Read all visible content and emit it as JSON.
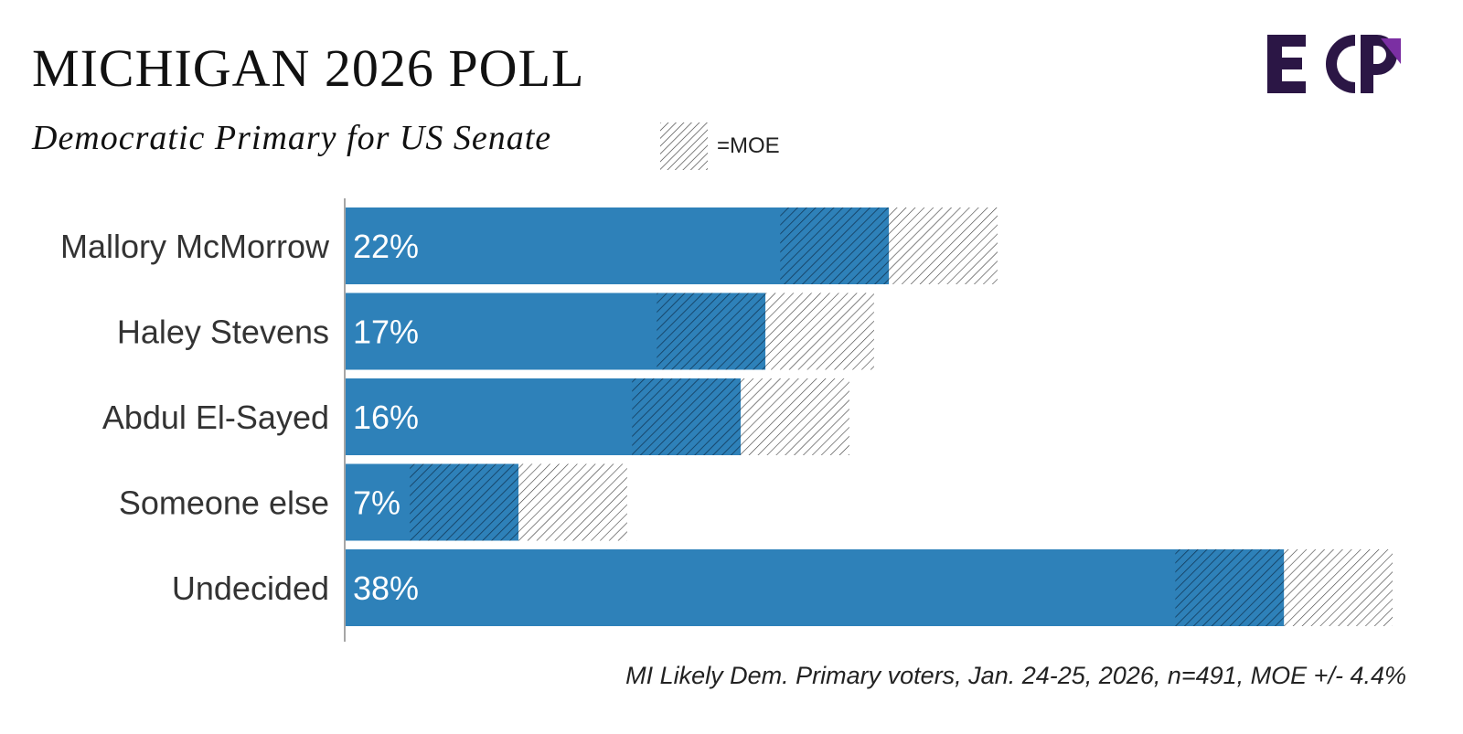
{
  "header": {
    "title": "MICHIGAN 2026 POLL",
    "subtitle": "Democratic Primary for US Senate"
  },
  "legend": {
    "moe_label": "=MOE"
  },
  "logo": {
    "text": "ECP",
    "colors": {
      "dark": "#2b1645",
      "accent": "#7b2fa3"
    }
  },
  "footnote": "MI Likely Dem. Primary voters, Jan. 24-25, 2026, n=491, MOE +/- 4.4%",
  "chart_data": {
    "type": "bar",
    "orientation": "horizontal",
    "categories": [
      "Mallory McMorrow",
      "Haley Stevens",
      "Abdul El-Sayed",
      "Someone else",
      "Undecided"
    ],
    "values": [
      22,
      17,
      16,
      7,
      38
    ],
    "value_labels": [
      "22%",
      "17%",
      "16%",
      "7%",
      "38%"
    ],
    "moe": 4.4,
    "xlim": [
      0,
      42.4
    ],
    "bar_color": "#2e81b9",
    "grid": false,
    "legend_placement": "top-center"
  }
}
